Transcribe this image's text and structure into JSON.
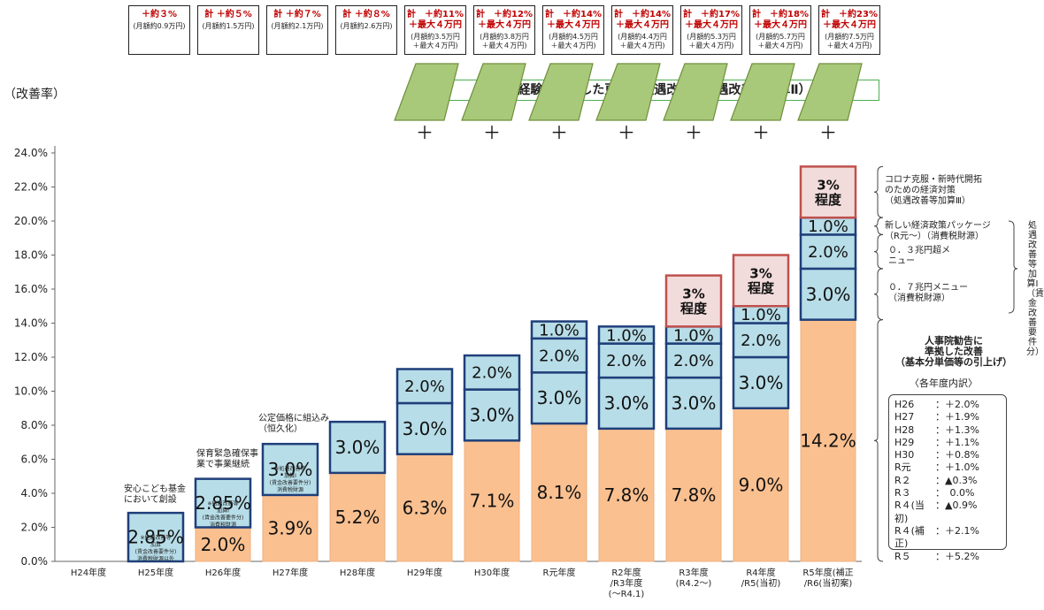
{
  "y_unit_label": "（改善率）",
  "banner_text": "技能・経験に着目した更なる処遇改善（処遇改善等加算Ⅱ）",
  "header_boxes": [
    {
      "line1": "＋約３%",
      "line2": "(月額約0.9万円)"
    },
    {
      "line1": "計 ＋約５%",
      "line2": "(月額約1.5万円)"
    },
    {
      "line1": "計 ＋約７%",
      "line2": "(月額約2.1万円)"
    },
    {
      "line1": "計 ＋約８%",
      "line2": "(月額約2.6万円)"
    },
    {
      "line1": "計　＋約11%\n＋最大４万円",
      "line2": "(月額約3.5万円\n＋最大４万円)"
    },
    {
      "line1": "計　＋約12%\n＋最大４万円",
      "line2": "(月額約3.8万円\n＋最大４万円)"
    },
    {
      "line1": "計　＋約14%\n＋最大４万円",
      "line2": "(月額約4.5万円\n＋最大４万円)"
    },
    {
      "line1": "計　＋約14%\n＋最大４万円",
      "line2": "(月額約4.4万円\n＋最大４万円)"
    },
    {
      "line1": "計　＋約17%\n＋最大４万円",
      "line2": "(月額約5.3万円\n＋最大４万円)"
    },
    {
      "line1": "計　＋約18%\n＋最大４万円",
      "line2": "(月額約5.7万円\n＋最大４万円)"
    },
    {
      "line1": "計　＋約23%\n＋最大４万円",
      "line2": "(月額約7.5万円\n＋最大４万円)"
    }
  ],
  "plus_sign": "＋",
  "annotations": {
    "h25": "安心こども基金\nにおいて創設",
    "h26": "保育緊急確保事\n業で事業継続",
    "h27": "公定価格に組込み\n（恒久化）",
    "covid": "コロナ克服・新時代開拓\nのための経済対策\n（処遇改善等加算Ⅲ）",
    "new_pkg": "新しい経済政策パッケージ\n（R元～）（消費税財源）",
    "menu03": "０．３兆円超メ\nニュー",
    "menu07": "０．７兆円メニュー\n（消費税財源）",
    "jinji": "人事院勧告に\n準拠した改善\n（基本分単価等の引上げ）",
    "kakunendo": "〈各年度内訳〉",
    "vertical": "処遇改善等加算Ⅰ（賃金改善要件分）"
  },
  "breakdown": [
    {
      "k": "H26",
      "v": "：＋2.0%"
    },
    {
      "k": "H27",
      "v": "：＋1.9%"
    },
    {
      "k": "H28",
      "v": "：＋1.3%"
    },
    {
      "k": "H29",
      "v": "：＋1.1%"
    },
    {
      "k": "H30",
      "v": "：＋0.8%"
    },
    {
      "k": "R元",
      "v": "：＋1.0%"
    },
    {
      "k": "R２",
      "v": "：▲0.3%"
    },
    {
      "k": "R３",
      "v": "：　0.0%"
    },
    {
      "k": "R４(当初)",
      "v": "：▲0.9%"
    },
    {
      "k": "R４(補正)",
      "v": "：＋2.1%"
    },
    {
      "k": "R５",
      "v": "：＋5.2%"
    }
  ],
  "chart_data": {
    "type": "bar",
    "stacked": true,
    "ylim": [
      0,
      24
    ],
    "yticks": [
      "0.0%",
      "2.0%",
      "4.0%",
      "6.0%",
      "8.0%",
      "10.0%",
      "12.0%",
      "14.0%",
      "16.0%",
      "18.0%",
      "20.0%",
      "22.0%",
      "24.0%"
    ],
    "categories": [
      "H24年度",
      "H25年度",
      "H26年度",
      "H27年度",
      "H28年度",
      "H29年度",
      "H30年度",
      "R元年度",
      "R2年度\n/R3年度\n(～R4.1)",
      "R3年度\n(R4.2～)",
      "R4年度\n/R5(当初)",
      "R5年度(補正\n/R6(当初案)"
    ],
    "series": [
      {
        "values": [
          0,
          0,
          2.0,
          3.9,
          5.2,
          6.3,
          7.1,
          8.1,
          7.8,
          7.8,
          9.0,
          14.2
        ],
        "labels": [
          "",
          "",
          "2.0%",
          "3.9%",
          "5.2%",
          "6.3%",
          "7.1%",
          "8.1%",
          "7.8%",
          "7.8%",
          "9.0%",
          "14.2%"
        ],
        "color": "#fac090"
      },
      {
        "values": [
          0,
          2.85,
          2.85,
          3.0,
          3.0,
          3.0,
          3.0,
          3.0,
          3.0,
          3.0,
          3.0,
          3.0
        ],
        "labels": [
          "",
          "2.85%",
          "2.85%",
          "3.0%",
          "3.0%",
          "3.0%",
          "3.0%",
          "3.0%",
          "3.0%",
          "3.0%",
          "3.0%",
          "3.0%"
        ],
        "color": "#b7dde8"
      },
      {
        "values": [
          0,
          0,
          0,
          0,
          0,
          2.0,
          2.0,
          2.0,
          2.0,
          2.0,
          2.0,
          2.0
        ],
        "labels": [
          "",
          "",
          "",
          "",
          "",
          "2.0%",
          "2.0%",
          "2.0%",
          "2.0%",
          "2.0%",
          "2.0%",
          "2.0%"
        ],
        "color": "#b7dde8"
      },
      {
        "values": [
          0,
          0,
          0,
          0,
          0,
          0,
          0,
          1.0,
          1.0,
          1.0,
          1.0,
          1.0
        ],
        "labels": [
          "",
          "",
          "",
          "",
          "",
          "",
          "",
          "1.0%",
          "1.0%",
          "1.0%",
          "1.0%",
          "1.0%"
        ],
        "color": "#b7dde8"
      },
      {
        "values": [
          0,
          0,
          0,
          0,
          0,
          0,
          0,
          0,
          0,
          3.0,
          3.0,
          3.0
        ],
        "labels": [
          "",
          "",
          "",
          "",
          "",
          "",
          "",
          "",
          "",
          "3%\n程度",
          "3%\n程度",
          "3%\n程度"
        ],
        "color": "#f2dcdb"
      }
    ],
    "small_notes": {
      "h25": "※処遇改善等\n加算\n(賃金改善要件分)\n消費税財源以外",
      "h26": "※処遇改善等\n加算Ⅰ\n(賃金改善要件分)\n消費税財源",
      "h27": "※処遇改善等\n加算Ⅰ\n(賃金改善要件分)\n消費税財源"
    },
    "grid": false,
    "legend": "none"
  },
  "colors": {
    "bar_border": "#1f3f7a",
    "pink_border": "#c0504d",
    "trap_fill": "#a9c97a",
    "trap_border": "#6e8e3a"
  }
}
